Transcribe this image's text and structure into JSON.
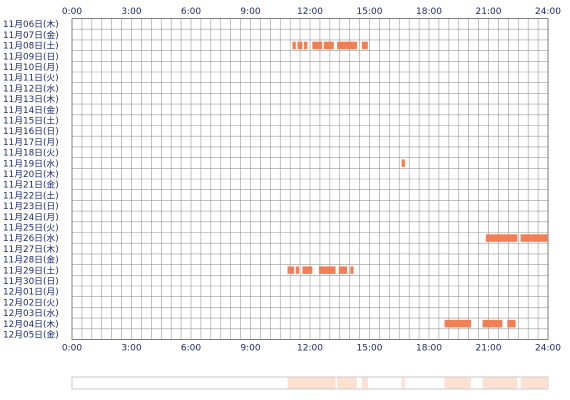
{
  "chart_data": {
    "type": "timeline",
    "title": "",
    "x_ticks": [
      "0:00",
      "3:00",
      "6:00",
      "9:00",
      "12:00",
      "15:00",
      "18:00",
      "21:00",
      "24:00"
    ],
    "x_range_hours": [
      0,
      24
    ],
    "grid": true,
    "rows": [
      "11月06日(木)",
      "11月07日(金)",
      "11月08日(土)",
      "11月09日(日)",
      "11月10日(月)",
      "11月11日(火)",
      "11月12日(水)",
      "11月13日(木)",
      "11月14日(金)",
      "11月15日(土)",
      "11月16日(日)",
      "11月17日(月)",
      "11月18日(火)",
      "11月19日(水)",
      "11月20日(木)",
      "11月21日(金)",
      "11月22日(土)",
      "11月23日(日)",
      "11月24日(月)",
      "11月25日(火)",
      "11月26日(水)",
      "11月27日(木)",
      "11月28日(金)",
      "11月29日(土)",
      "11月30日(日)",
      "12月01日(月)",
      "12月02日(火)",
      "12月03日(水)",
      "12月04日(木)",
      "12月05日(金)"
    ],
    "segments": [
      {
        "row": "11月08日(土)",
        "start": "11:07",
        "end": "11:17"
      },
      {
        "row": "11月08日(土)",
        "start": "11:22",
        "end": "11:37"
      },
      {
        "row": "11月08日(土)",
        "start": "11:42",
        "end": "11:52"
      },
      {
        "row": "11月08日(土)",
        "start": "12:07",
        "end": "12:37"
      },
      {
        "row": "11月08日(土)",
        "start": "12:42",
        "end": "13:12"
      },
      {
        "row": "11月08日(土)",
        "start": "13:22",
        "end": "14:22"
      },
      {
        "row": "11月08日(土)",
        "start": "14:37",
        "end": "14:55"
      },
      {
        "row": "11月19日(水)",
        "start": "16:37",
        "end": "16:47"
      },
      {
        "row": "11月26日(水)",
        "start": "20:52",
        "end": "22:27"
      },
      {
        "row": "11月26日(水)",
        "start": "22:37",
        "end": "24:00"
      },
      {
        "row": "11月29日(土)",
        "start": "10:52",
        "end": "11:12"
      },
      {
        "row": "11月29日(土)",
        "start": "11:17",
        "end": "11:27"
      },
      {
        "row": "11月29日(土)",
        "start": "11:37",
        "end": "12:07"
      },
      {
        "row": "11月29日(土)",
        "start": "12:27",
        "end": "13:17"
      },
      {
        "row": "11月29日(土)",
        "start": "13:27",
        "end": "13:52"
      },
      {
        "row": "11月29日(土)",
        "start": "14:02",
        "end": "14:12"
      },
      {
        "row": "12月04日(木)",
        "start": "18:47",
        "end": "20:07"
      },
      {
        "row": "12月04日(木)",
        "start": "20:42",
        "end": "21:42"
      },
      {
        "row": "12月04日(木)",
        "start": "21:57",
        "end": "22:22"
      }
    ],
    "bar_color": "#f07f56",
    "summary_color": "#fde0d0",
    "grid_color": "#9a9a9a"
  }
}
